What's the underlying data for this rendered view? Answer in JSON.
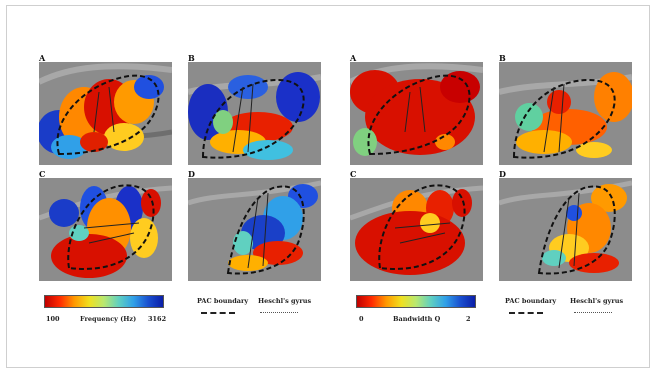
{
  "panel_labels": {
    "freq_A": "A",
    "freq_B": "B",
    "freq_C": "C",
    "freq_D": "D",
    "bw_A": "A",
    "bw_B": "B",
    "bw_C": "C",
    "bw_D": "D"
  },
  "frequency_legend": {
    "min_label": "100",
    "title": "Frequency (Hz)",
    "max_label": "3162",
    "gradient_stops": [
      "#c00000",
      "#ff2a00",
      "#ff9900",
      "#f0e020",
      "#b8e870",
      "#60d0c0",
      "#30a0e8",
      "#1a50d0",
      "#0a1ea8"
    ]
  },
  "bandwidth_legend": {
    "min_label": "0",
    "title": "Bandwidth Q",
    "max_label": "2",
    "gradient_stops": [
      "#c00000",
      "#ff2a00",
      "#ff9900",
      "#f0e020",
      "#b8e870",
      "#60d0c0",
      "#30a0e8",
      "#1a50d0",
      "#0a1ea8"
    ]
  },
  "boundary_legend_left": {
    "pac_label": "PAC boundary",
    "heschl_label": "Heschl's gyrus"
  },
  "boundary_legend_right": {
    "pac_label": "PAC boundary",
    "heschl_label": "Heschl's gyrus"
  },
  "colors": {
    "brain_gray": "#8a8a8a",
    "frame_border": "#cfcfcf"
  }
}
